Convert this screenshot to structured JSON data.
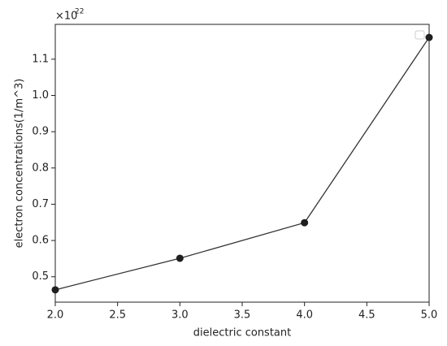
{
  "chart_data": {
    "type": "line",
    "x_label": "dielectric constant",
    "y_label": "electron concentrations(1/m^3)",
    "y_scale_base": "×10",
    "y_scale_exponent": "22",
    "x": [
      2,
      3,
      4,
      5
    ],
    "series": [
      {
        "color": "#333333",
        "marker_color": "#1f1f1f",
        "values": [
          0.464,
          0.551,
          0.649,
          1.16
        ]
      }
    ],
    "xlim": [
      2,
      5
    ],
    "ylim": [
      0.43,
      1.196
    ],
    "xticks": [
      {
        "value": 2,
        "label": "2.0"
      },
      2.5,
      {
        "value": 3,
        "label": "3.0"
      },
      3.5,
      {
        "value": 4,
        "label": "4.0"
      },
      4.5,
      {
        "value": 5,
        "label": "5.0"
      }
    ],
    "yticks": [
      0.5,
      0.6,
      0.7,
      0.8,
      0.9,
      {
        "value": 1,
        "label": "1.0"
      },
      1.1
    ],
    "grid": false,
    "legend": "upper right"
  }
}
